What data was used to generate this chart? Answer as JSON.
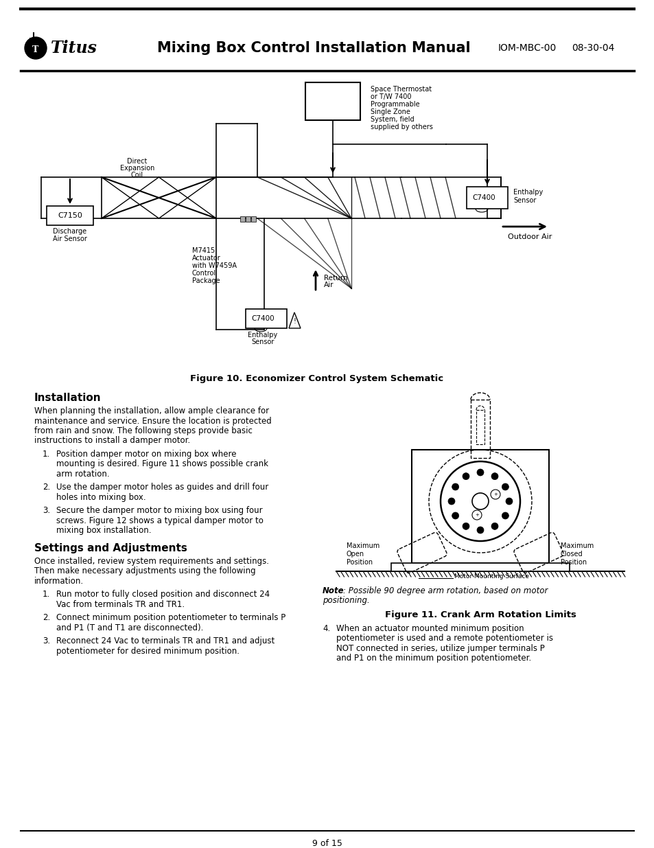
{
  "page_title": "Mixing Box Control Installation Manual",
  "logo_text": "● Titus",
  "header_right1": "IOM-MBC-00",
  "header_right2": "08-30-04",
  "figure10_caption": "Figure 10. Economizer Control System Schematic",
  "figure11_caption": "Figure 11. Crank Arm Rotation Limits",
  "installation_heading": "Installation",
  "installation_para1": "When planning the installation, allow ample clearance for",
  "installation_para2": "maintenance and service. Ensure the location is protected",
  "installation_para3": "from rain and snow. The following steps provide basic",
  "installation_para4": "instructions to install a damper motor.",
  "install_item1_lines": [
    "Position damper motor on mixing box where",
    "mounting is desired. Figure 11 shows possible crank",
    "arm rotation."
  ],
  "install_item2_lines": [
    "Use the damper motor holes as guides and drill four",
    "holes into mixing box."
  ],
  "install_item3_lines": [
    "Secure the damper motor to mixing box using four",
    "screws. Figure 12 shows a typical damper motor to",
    "mixing box installation."
  ],
  "settings_heading": "Settings and Adjustments",
  "settings_para1": "Once installed, review system requirements and settings.",
  "settings_para2": "Then make necessary adjustments using the following",
  "settings_para3": "information.",
  "settings_item1_lines": [
    "Run motor to fully closed position and disconnect 24",
    "Vac from terminals TR and TR1."
  ],
  "settings_item2_lines": [
    "Connect minimum position potentiometer to terminals P",
    "and P1 (T and T1 are disconnected)."
  ],
  "settings_item3_lines": [
    "Reconnect 24 Vac to terminals TR and TR1 and adjust",
    "potentiometer for desired minimum position."
  ],
  "item4_lines": [
    "When an actuator mounted minimum position",
    "potentiometer is used and a remote potentiometer is",
    "NOT connected in series, utilize jumper terminals P",
    "and P1 on the minimum position potentiometer."
  ],
  "footer_text": "9 of 15",
  "bg": "#ffffff"
}
